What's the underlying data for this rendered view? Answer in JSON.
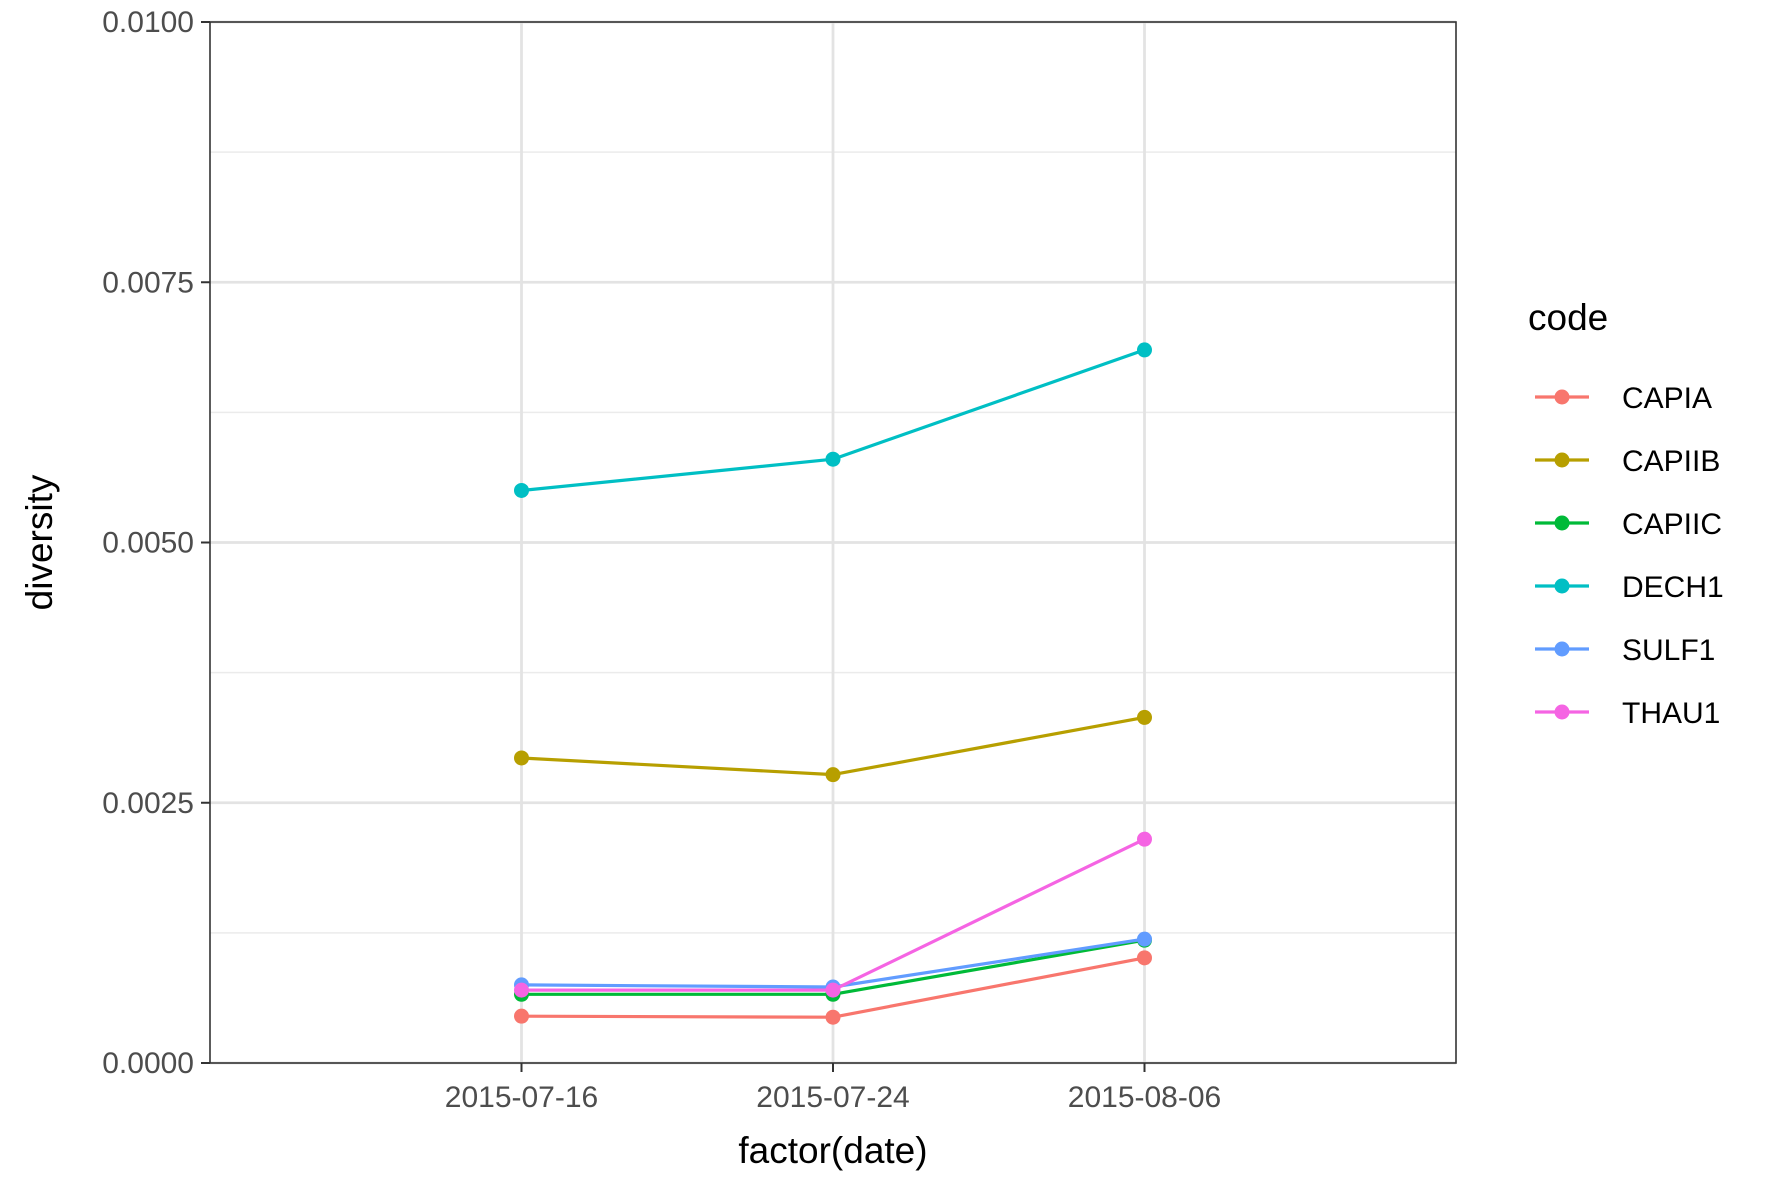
{
  "chart_data": {
    "type": "line",
    "title": "",
    "xlabel": "factor(date)",
    "ylabel": "diversity",
    "categories": [
      "2015-07-16",
      "2015-07-24",
      "2015-08-06"
    ],
    "ylim": [
      0,
      0.01
    ],
    "yticks": [
      0,
      0.0025,
      0.005,
      0.0075,
      0.01
    ],
    "ytick_labels": [
      "0.0000",
      "0.0025",
      "0.0050",
      "0.0075",
      "0.0100"
    ],
    "grid": true,
    "legend": {
      "title": "code",
      "position": "right"
    },
    "series": [
      {
        "name": "CAPIA",
        "color": "#F8766D",
        "values": [
          0.00045,
          0.00044,
          0.00101
        ]
      },
      {
        "name": "CAPIIB",
        "color": "#B79F00",
        "values": [
          0.00293,
          0.00277,
          0.00332
        ]
      },
      {
        "name": "CAPIIC",
        "color": "#00BA38",
        "values": [
          0.00066,
          0.00066,
          0.00118
        ]
      },
      {
        "name": "DECH1",
        "color": "#00BFC4",
        "values": [
          0.0055,
          0.0058,
          0.00685
        ]
      },
      {
        "name": "SULF1",
        "color": "#619CFF",
        "values": [
          0.00075,
          0.00073,
          0.00119
        ]
      },
      {
        "name": "THAU1",
        "color": "#F564E3",
        "values": [
          0.0007,
          0.0007,
          0.00215
        ]
      }
    ]
  }
}
